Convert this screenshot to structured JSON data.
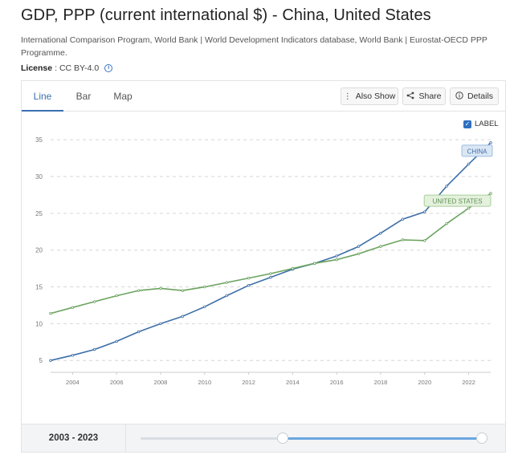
{
  "header": {
    "title": "GDP, PPP (current international $) - China, United States",
    "source": "International Comparison Program, World Bank | World Development Indicators database, World Bank | Eurostat-OECD PPP Programme.",
    "license_label": "License",
    "license_value": ": CC BY-4.0",
    "info_icon": "i"
  },
  "tabs": [
    {
      "label": "Line",
      "active": true
    },
    {
      "label": "Bar",
      "active": false
    },
    {
      "label": "Map",
      "active": false
    }
  ],
  "toolbar": {
    "also_show": "Also Show",
    "share": "Share",
    "details": "Details"
  },
  "label_toggle": {
    "text": "LABEL",
    "checked": true
  },
  "colors": {
    "china": "#3d6fa8",
    "us": "#6aa35e",
    "grid": "#d6d6d6",
    "axis_text": "#777777"
  },
  "chart_data": {
    "type": "line",
    "x": [
      2003,
      2004,
      2005,
      2006,
      2007,
      2008,
      2009,
      2010,
      2011,
      2012,
      2013,
      2014,
      2015,
      2016,
      2017,
      2018,
      2019,
      2020,
      2021,
      2022,
      2023
    ],
    "series": [
      {
        "name": "CHINA",
        "color": "#3d6fa8",
        "values": [
          5.0,
          5.7,
          6.5,
          7.6,
          8.9,
          10.0,
          11.0,
          12.3,
          13.8,
          15.2,
          16.3,
          17.4,
          18.2,
          19.2,
          20.5,
          22.3,
          24.2,
          25.2,
          28.7,
          31.7,
          34.6
        ]
      },
      {
        "name": "UNITED STATES",
        "color": "#6aa35e",
        "values": [
          11.4,
          12.2,
          13.0,
          13.8,
          14.5,
          14.8,
          14.5,
          15.0,
          15.6,
          16.2,
          16.8,
          17.5,
          18.2,
          18.7,
          19.5,
          20.5,
          21.4,
          21.3,
          23.6,
          25.7,
          27.7
        ]
      }
    ],
    "yticks": [
      5,
      10,
      15,
      20,
      25,
      30,
      35
    ],
    "xticks": [
      2004,
      2006,
      2008,
      2010,
      2012,
      2014,
      2016,
      2018,
      2020,
      2022
    ],
    "ylim": [
      3.5,
      36
    ],
    "xlim": [
      2003,
      2023
    ],
    "grid": true,
    "labels": [
      "CHINA",
      "UNITED STATES"
    ]
  },
  "footer": {
    "range_label": "2003 - 2023",
    "slider_start_fraction": 0.41,
    "slider_end_fraction": 1.0
  }
}
